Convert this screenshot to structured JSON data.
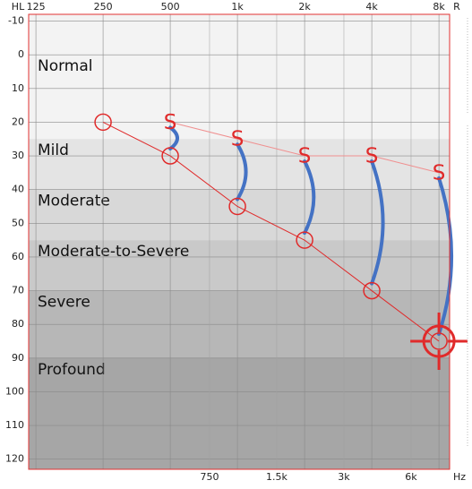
{
  "chart_data": {
    "type": "audiogram",
    "y_label": "HL",
    "ear": "R",
    "x_label": "Hz",
    "xlim": [
      116,
      8930
    ],
    "ylim": [
      -12,
      123
    ],
    "xticks": [
      125,
      250,
      500,
      {
        "value": 1000,
        "label": "1k"
      },
      {
        "value": 2000,
        "label": "2k"
      },
      {
        "value": 4000,
        "label": "4k"
      },
      {
        "value": 8000,
        "label": "8k"
      }
    ],
    "xticks_minor": [
      750,
      {
        "value": 1500,
        "label": "1.5k"
      },
      {
        "value": 3000,
        "label": "3k"
      },
      {
        "value": 6000,
        "label": "6k"
      }
    ],
    "yticks": [
      -10,
      0,
      10,
      20,
      30,
      40,
      50,
      60,
      70,
      80,
      90,
      100,
      110,
      120
    ],
    "grid": true,
    "bands": [
      {
        "label": "Normal",
        "from": -12,
        "to": 25,
        "color": "#f3f3f3"
      },
      {
        "label": "Mild",
        "from": 25,
        "to": 40,
        "color": "#e4e4e4"
      },
      {
        "label": "Moderate",
        "from": 40,
        "to": 55,
        "color": "#d8d8d8"
      },
      {
        "label": "Moderate-to-Severe",
        "from": 55,
        "to": 70,
        "color": "#c9c9c9"
      },
      {
        "label": "Severe",
        "from": 70,
        "to": 90,
        "color": "#b7b7b7"
      },
      {
        "label": "Profound",
        "from": 90,
        "to": 123,
        "color": "#a6a6a6"
      }
    ],
    "series": [
      {
        "marker": "circle",
        "color": "#e02a2a",
        "x": [
          250,
          500,
          1000,
          2000,
          4000,
          8000
        ],
        "values": [
          20,
          30,
          45,
          55,
          70,
          85
        ],
        "highlight_index": 5
      },
      {
        "symbol": "S",
        "color": "#e02a2a",
        "line_color": "#f09090",
        "x": [
          500,
          1000,
          2000,
          4000,
          8000
        ],
        "values": [
          20,
          25,
          30,
          30,
          35
        ]
      }
    ],
    "gain_color": "#4472c4"
  }
}
